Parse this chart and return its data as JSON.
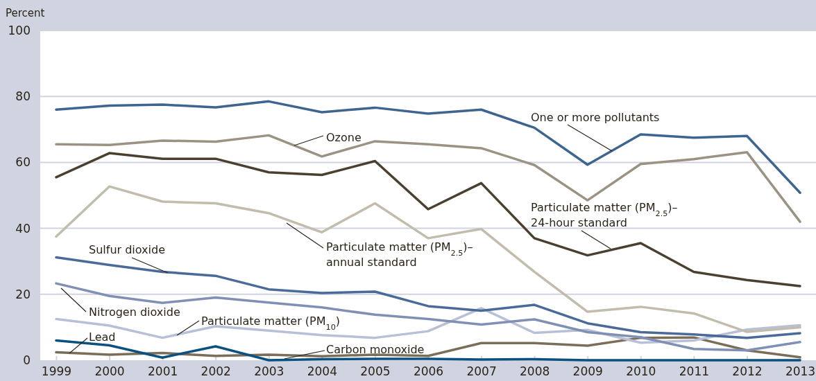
{
  "chart_data": {
    "type": "line",
    "ylabel": "Percent",
    "x": [
      1999,
      2000,
      2001,
      2002,
      2003,
      2004,
      2005,
      2006,
      2007,
      2008,
      2009,
      2010,
      2011,
      2012,
      2013
    ],
    "xlim": [
      1998.7,
      2013.3
    ],
    "xticks": [
      1999,
      2000,
      2001,
      2002,
      2003,
      2004,
      2005,
      2006,
      2007,
      2008,
      2009,
      2010,
      2011,
      2012,
      2013
    ],
    "ylim": [
      0,
      100
    ],
    "yticks": [
      0,
      20,
      40,
      60,
      80,
      100
    ],
    "grid": "y",
    "legend": false,
    "marker": "none",
    "line_style": "solid",
    "series": [
      {
        "name": "One or more pollutants",
        "color": "#3e6490",
        "values": [
          76,
          77.2,
          77.5,
          76.7,
          78.5,
          75.2,
          76.6,
          74.8,
          76,
          70.5,
          59.3,
          68.5,
          67.5,
          68,
          50.8
        ]
      },
      {
        "name": "Ozone",
        "color": "#9a9282",
        "values": [
          65.5,
          65.3,
          66.6,
          66.3,
          68.2,
          61.8,
          66.4,
          65.5,
          64.3,
          59.2,
          48.5,
          59.5,
          61,
          63.1,
          42
        ]
      },
      {
        "name": "Particulate matter (PM$_{2.5}$)–24-hour standard",
        "color": "#4a4030",
        "values": [
          55.5,
          62.8,
          61.1,
          61.1,
          57,
          56.2,
          60.4,
          45.8,
          53.7,
          37,
          31.8,
          35.5,
          26.8,
          24.3,
          22.5
        ]
      },
      {
        "name": "Particulate matter (PM$_{2.5}$)–annual standard",
        "color": "#c2bcac",
        "values": [
          37.5,
          52.7,
          48.1,
          47.6,
          44.6,
          38.8,
          47.6,
          37,
          39.8,
          26.8,
          14.7,
          16.2,
          14.2,
          8.6,
          10
        ]
      },
      {
        "name": "Sulfur dioxide",
        "color": "#4a6a9a",
        "values": [
          31.2,
          28.9,
          26.8,
          25.6,
          21.5,
          20.4,
          20.8,
          16.4,
          15,
          16.8,
          11.2,
          8.5,
          7.8,
          6.8,
          8.2
        ]
      },
      {
        "name": "Nitrogen dioxide",
        "color": "#8090b4",
        "values": [
          23.3,
          19.5,
          17.4,
          19,
          17.5,
          16,
          13.8,
          12.5,
          10.8,
          12.4,
          8.5,
          7,
          3.4,
          3,
          5.5
        ]
      },
      {
        "name": "Particulate matter (PM$_{10}$)",
        "color": "#b8c0d8",
        "values": [
          12.5,
          10.5,
          6.8,
          10.3,
          9,
          7.6,
          6.8,
          8.8,
          15.8,
          8.3,
          9.2,
          5.3,
          6,
          9.3,
          10.6
        ]
      },
      {
        "name": "Lead",
        "color": "#0a5080",
        "values": [
          6,
          4.5,
          0.8,
          4.2,
          0,
          0.3,
          0.4,
          0.4,
          0.2,
          0.3,
          0,
          0,
          0,
          0,
          0
        ]
      },
      {
        "name": "Carbon monoxide",
        "color": "#7a6e58",
        "values": [
          2.4,
          1.7,
          2.2,
          1.3,
          1.7,
          1.2,
          1.7,
          1.3,
          5.2,
          5.2,
          4.4,
          6.8,
          6.9,
          3,
          0.9
        ]
      }
    ]
  }
}
